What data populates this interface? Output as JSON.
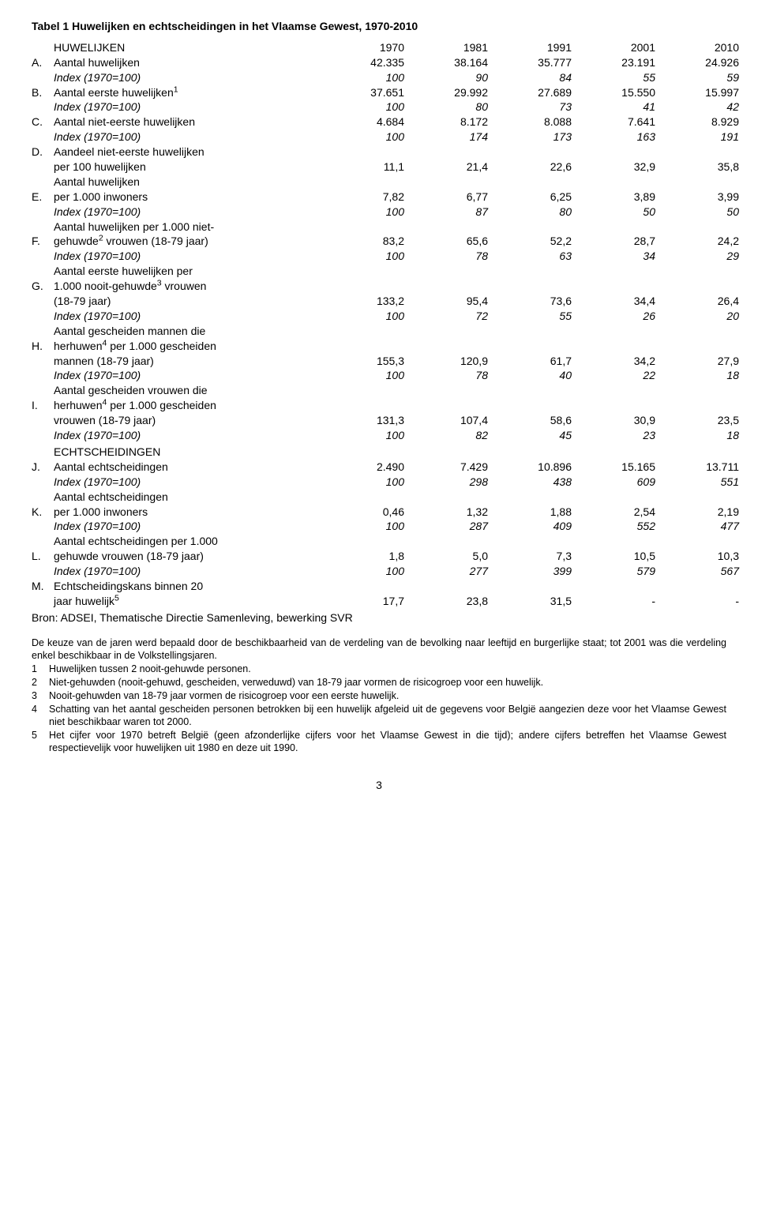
{
  "title": "Tabel 1   Huwelijken en echtscheidingen in het Vlaamse Gewest, 1970-2010",
  "years": [
    "1970",
    "1981",
    "1991",
    "2001",
    "2010"
  ],
  "sections": {
    "huwelijken": "HUWELIJKEN",
    "echtscheidingen": "ECHTSCHEIDINGEN"
  },
  "rows": [
    {
      "letter": "A.",
      "lines": [
        {
          "label": "Aantal huwelijken",
          "vals": [
            "42.335",
            "38.164",
            "35.777",
            "23.191",
            "24.926"
          ]
        },
        {
          "label": "Index (1970=100)",
          "vals": [
            "100",
            "90",
            "84",
            "55",
            "59"
          ],
          "italic": true
        }
      ]
    },
    {
      "letter": "B.",
      "lines": [
        {
          "label_html": "Aantal eerste huwelijken<sup>1</sup>",
          "vals": [
            "37.651",
            "29.992",
            "27.689",
            "15.550",
            "15.997"
          ]
        },
        {
          "label": "Index (1970=100)",
          "vals": [
            "100",
            "80",
            "73",
            "41",
            "42"
          ],
          "italic": true
        }
      ]
    },
    {
      "letter": "C.",
      "lines": [
        {
          "label": "Aantal niet-eerste huwelijken",
          "vals": [
            "4.684",
            "8.172",
            "8.088",
            "7.641",
            "8.929"
          ]
        },
        {
          "label": "Index (1970=100)",
          "vals": [
            "100",
            "174",
            "173",
            "163",
            "191"
          ],
          "italic": true
        }
      ]
    },
    {
      "letter": "D.",
      "lines": [
        {
          "label": "Aandeel niet-eerste huwelijken",
          "vals": [
            "",
            "",
            "",
            "",
            ""
          ]
        },
        {
          "label": "per 100 huwelijken",
          "vals": [
            "11,1",
            "21,4",
            "22,6",
            "32,9",
            "35,8"
          ]
        }
      ]
    },
    {
      "letter": "E.",
      "lines": [
        {
          "label": "Aantal huwelijken",
          "vals": [
            "",
            "",
            "",
            "",
            ""
          ]
        },
        {
          "label": "per 1.000 inwoners",
          "vals": [
            "7,82",
            "6,77",
            "6,25",
            "3,89",
            "3,99"
          ]
        },
        {
          "label": "Index (1970=100)",
          "vals": [
            "100",
            "87",
            "80",
            "50",
            "50"
          ],
          "italic": true
        }
      ]
    },
    {
      "letter": "F.",
      "lines": [
        {
          "label": "Aantal huwelijken per 1.000 niet-",
          "vals": [
            "",
            "",
            "",
            "",
            ""
          ]
        },
        {
          "label_html": "gehuwde<sup>2</sup> vrouwen (18-79 jaar)",
          "vals": [
            "83,2",
            "65,6",
            "52,2",
            "28,7",
            "24,2"
          ]
        },
        {
          "label": "Index (1970=100)",
          "vals": [
            "100",
            "78",
            "63",
            "34",
            "29"
          ],
          "italic": true
        }
      ]
    },
    {
      "letter": "G.",
      "lines": [
        {
          "label": "Aantal eerste huwelijken per",
          "vals": [
            "",
            "",
            "",
            "",
            ""
          ]
        },
        {
          "label_html": "1.000 nooit-gehuwde<sup>3</sup> vrouwen",
          "vals": [
            "",
            "",
            "",
            "",
            ""
          ]
        },
        {
          "label": "(18-79 jaar)",
          "vals": [
            "133,2",
            "95,4",
            "73,6",
            "34,4",
            "26,4"
          ]
        },
        {
          "label": "Index (1970=100)",
          "vals": [
            "100",
            "72",
            "55",
            "26",
            "20"
          ],
          "italic": true
        }
      ]
    },
    {
      "letter": "H.",
      "lines": [
        {
          "label": "Aantal gescheiden mannen die",
          "vals": [
            "",
            "",
            "",
            "",
            ""
          ]
        },
        {
          "label_html": "herhuwen<sup>4</sup> per 1.000 gescheiden",
          "vals": [
            "",
            "",
            "",
            "",
            ""
          ]
        },
        {
          "label": "mannen (18-79 jaar)",
          "vals": [
            "155,3",
            "120,9",
            "61,7",
            "34,2",
            "27,9"
          ]
        },
        {
          "label": "Index (1970=100)",
          "vals": [
            "100",
            "78",
            "40",
            "22",
            "18"
          ],
          "italic": true
        }
      ]
    },
    {
      "letter": "I.",
      "lines": [
        {
          "label": "Aantal gescheiden vrouwen die",
          "vals": [
            "",
            "",
            "",
            "",
            ""
          ]
        },
        {
          "label_html": "herhuwen<sup>4</sup> per 1.000 gescheiden",
          "vals": [
            "",
            "",
            "",
            "",
            ""
          ]
        },
        {
          "label": "vrouwen (18-79 jaar)",
          "vals": [
            "131,3",
            "107,4",
            "58,6",
            "30,9",
            "23,5"
          ]
        },
        {
          "label": "Index (1970=100)",
          "vals": [
            "100",
            "82",
            "45",
            "23",
            "18"
          ],
          "italic": true
        }
      ]
    },
    {
      "section": "echtscheidingen"
    },
    {
      "letter": "J.",
      "lines": [
        {
          "label": "Aantal echtscheidingen",
          "vals": [
            "2.490",
            "7.429",
            "10.896",
            "15.165",
            "13.711"
          ]
        },
        {
          "label": "Index (1970=100)",
          "vals": [
            "100",
            "298",
            "438",
            "609",
            "551"
          ],
          "italic": true
        }
      ]
    },
    {
      "letter": "K.",
      "lines": [
        {
          "label": "Aantal echtscheidingen",
          "vals": [
            "",
            "",
            "",
            "",
            ""
          ]
        },
        {
          "label": "per 1.000 inwoners",
          "vals": [
            "0,46",
            "1,32",
            "1,88",
            "2,54",
            "2,19"
          ]
        },
        {
          "label": "Index (1970=100)",
          "vals": [
            "100",
            "287",
            "409",
            "552",
            "477"
          ],
          "italic": true
        }
      ]
    },
    {
      "letter": "L.",
      "lines": [
        {
          "label": "Aantal echtscheidingen per 1.000",
          "vals": [
            "",
            "",
            "",
            "",
            ""
          ]
        },
        {
          "label": "gehuwde vrouwen (18-79 jaar)",
          "vals": [
            "1,8",
            "5,0",
            "7,3",
            "10,5",
            "10,3"
          ]
        },
        {
          "label": "Index (1970=100)",
          "vals": [
            "100",
            "277",
            "399",
            "579",
            "567"
          ],
          "italic": true
        }
      ]
    },
    {
      "letter": "M.",
      "lines": [
        {
          "label": "Echtscheidingskans binnen 20",
          "vals": [
            "",
            "",
            "",
            "",
            ""
          ]
        },
        {
          "label_html": "jaar huwelijk<sup>5</sup>",
          "vals": [
            "17,7",
            "23,8",
            "31,5",
            "-",
            "-"
          ]
        }
      ]
    }
  ],
  "source": "Bron: ADSEI, Thematische Directie Samenleving, bewerking SVR",
  "notes_intro": "De keuze van de jaren werd bepaald door de beschikbaarheid van de verdeling van de bevolking naar leeftijd en burgerlijke staat; tot 2001 was die verdeling enkel beschikbaar in de Volkstellingsjaren.",
  "notes": [
    {
      "n": "1",
      "t": "Huwelijken tussen 2 nooit-gehuwde personen."
    },
    {
      "n": "2",
      "t": "Niet-gehuwden (nooit-gehuwd, gescheiden, verweduwd) van 18-79 jaar vormen de risicogroep voor een huwelijk."
    },
    {
      "n": "3",
      "t": "Nooit-gehuwden van 18-79 jaar vormen de risicogroep voor een eerste huwelijk."
    },
    {
      "n": "4",
      "t": "Schatting van het aantal gescheiden personen betrokken bij een huwelijk afgeleid uit de gegevens voor België aangezien deze voor het Vlaamse Gewest niet beschikbaar waren tot 2000."
    },
    {
      "n": "5",
      "t": "Het cijfer voor 1970 betreft België (geen afzonderlijke cijfers voor het Vlaamse Gewest in die tijd); andere cijfers betreffen het Vlaamse Gewest respectievelijk voor huwelijken uit 1980 en deze uit 1990."
    }
  ],
  "page_number": "3"
}
